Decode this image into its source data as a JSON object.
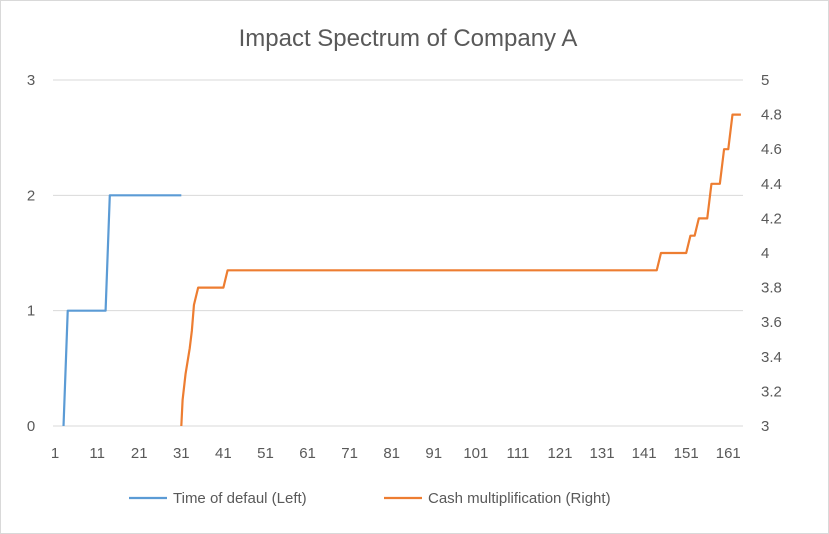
{
  "chart_data": {
    "type": "line",
    "title": "Impact Spectrum of Company A",
    "xlabel": "",
    "ylabel": "",
    "y2label": "",
    "x_range": [
      1,
      164
    ],
    "x_ticks": [
      1,
      11,
      21,
      31,
      41,
      51,
      61,
      71,
      81,
      91,
      101,
      111,
      121,
      131,
      141,
      151,
      161
    ],
    "ylim": [
      0,
      3
    ],
    "y_ticks": [
      0,
      1,
      2,
      3
    ],
    "y2lim": [
      3,
      5
    ],
    "y2_ticks": [
      3,
      3.2,
      3.4,
      3.6,
      3.8,
      4,
      4.2,
      4.4,
      4.6,
      4.8,
      5
    ],
    "grid": "horizontal",
    "legend_position": "bottom",
    "colors": {
      "left_series": "#5b9bd5",
      "right_series": "#ed7d31",
      "grid": "#d9d9d9",
      "text": "#595959"
    },
    "series": [
      {
        "name": "Time of defaul (Left)",
        "axis": "left",
        "points": [
          [
            3,
            0
          ],
          [
            4,
            1
          ],
          [
            13,
            1
          ],
          [
            14,
            2
          ],
          [
            31,
            2
          ]
        ]
      },
      {
        "name": "Cash multiplification (Right)",
        "axis": "right",
        "points": [
          [
            31,
            3
          ],
          [
            31.3,
            3.15
          ],
          [
            32,
            3.3
          ],
          [
            33,
            3.45
          ],
          [
            33.5,
            3.55
          ],
          [
            34,
            3.7
          ],
          [
            35,
            3.8
          ],
          [
            41,
            3.8
          ],
          [
            42,
            3.9
          ],
          [
            43,
            3.9
          ],
          [
            144,
            3.9
          ],
          [
            145,
            4
          ],
          [
            151,
            4
          ],
          [
            152,
            4.1
          ],
          [
            153,
            4.1
          ],
          [
            154,
            4.2
          ],
          [
            156,
            4.2
          ],
          [
            157,
            4.4
          ],
          [
            159,
            4.4
          ],
          [
            160,
            4.6
          ],
          [
            161,
            4.6
          ],
          [
            162,
            4.8
          ],
          [
            164,
            4.8
          ]
        ]
      }
    ]
  }
}
